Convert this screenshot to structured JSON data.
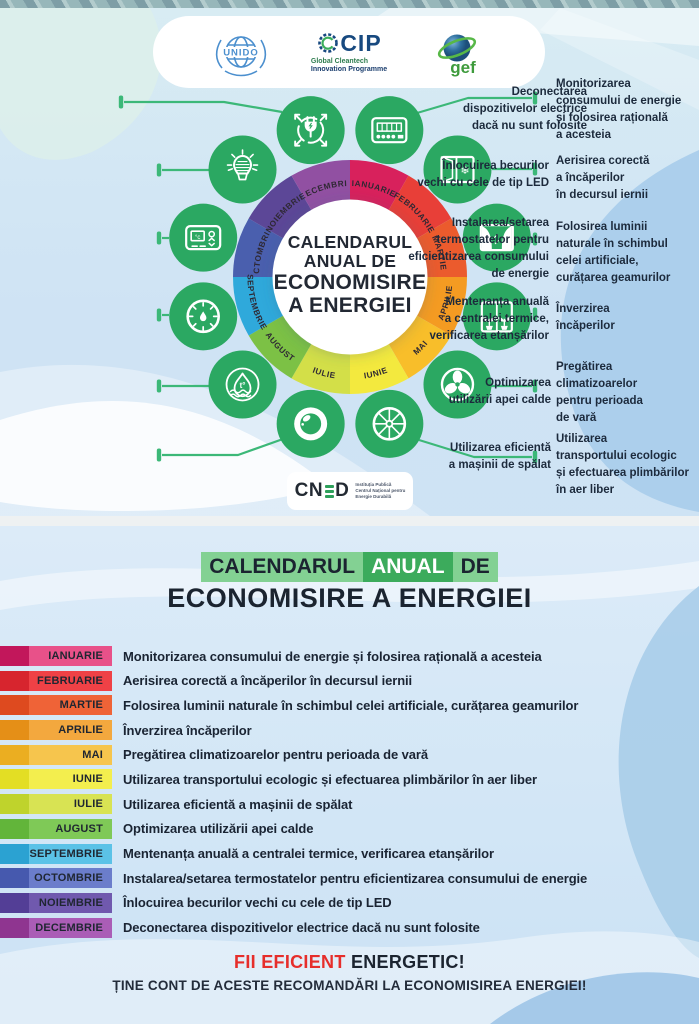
{
  "header": {
    "unido_label": "UNIDO",
    "gcip_label": "CIP",
    "gcip_sub1": "Global Cleantech",
    "gcip_sub2": "Innovation Programme",
    "gef_label": "gef"
  },
  "wheel_center": {
    "line1": "CALENDARUL",
    "line2": "ANUAL DE",
    "line3": "ECONOMISIRE",
    "line4": "A ENERGIEI"
  },
  "months": [
    {
      "name": "IANUARIE",
      "wedge_color": "#D8215C",
      "badge_dark": "#C2175B",
      "badge_light": "#E85189",
      "icon": "meter",
      "diagram_label": "Monitorizarea\nconsumului de energie\nși folosirea rațională\na acesteia",
      "description": "Monitorizarea consumului de energie și folosirea rațională a acesteia"
    },
    {
      "name": "FEBRUARIE",
      "wedge_color": "#E83F38",
      "badge_dark": "#D7252E",
      "badge_light": "#EF4146",
      "icon": "window-ventilation",
      "diagram_label": "Aerisirea corectă\na încăperilor\nîn decursul iernii",
      "description": "Aerisirea corectă a încăperilor în decursul iernii"
    },
    {
      "name": "MARTIE",
      "wedge_color": "#EB5B2D",
      "badge_dark": "#DE4A1F",
      "badge_light": "#EF6337",
      "icon": "curtains",
      "diagram_label": "Folosirea luminii\nnaturale în schimbul\ncelei artificiale,\ncurățarea geamurilor",
      "description": "Folosirea luminii naturale în schimbul celei artificiale, curățarea geamurilor"
    },
    {
      "name": "APRILIE",
      "wedge_color": "#F49B22",
      "badge_dark": "#E58F17",
      "badge_light": "#F3A83E",
      "icon": "plants-window",
      "diagram_label": "Înverzirea\nîncăperilor",
      "description": "Înverzirea încăperilor"
    },
    {
      "name": "MAI",
      "wedge_color": "#F8BE2A",
      "badge_dark": "#EBAE21",
      "badge_light": "#F6C54D",
      "icon": "fan",
      "diagram_label": "Pregătirea\nclimatizoarelor\npentru perioada\nde vară",
      "description": "Pregătirea climatizoarelor pentru perioada de vară"
    },
    {
      "name": "IUNIE",
      "wedge_color": "#F3E93E",
      "badge_dark": "#E3DE24",
      "badge_light": "#F3EE4E",
      "icon": "wheel",
      "diagram_label": "Utilizarea\ntransportului ecologic\nși efectuarea plimbărilor\nîn aer liber",
      "description": "Utilizarea transportului ecologic și efectuarea plimbărilor în aer liber"
    },
    {
      "name": "IULIE",
      "wedge_color": "#D3DF48",
      "badge_dark": "#BFD32C",
      "badge_light": "#D8E353",
      "icon": "washing-drum",
      "diagram_label": "Utilizarea eficientă\na mașinii de spălat",
      "description": "Utilizarea eficientă a mașinii de spălat"
    },
    {
      "name": "AUGUST",
      "wedge_color": "#7CC145",
      "badge_dark": "#62B53A",
      "badge_light": "#7FC957",
      "icon": "water-drop",
      "diagram_label": "Optimizarea\nutilizării apei calde",
      "description": "Optimizarea utilizării apei calde"
    },
    {
      "name": "SEPTEMBRIE",
      "wedge_color": "#2FA9DB",
      "badge_dark": "#2BA2D2",
      "badge_light": "#5BC2E7",
      "icon": "gauge",
      "diagram_label": "Mentenanța anuală\na centralei termice,\nverificarea etanșărilor",
      "description": "Mentenanța anuală a centralei termice, verificarea etanșărilor"
    },
    {
      "name": "OCTOMBRIE",
      "wedge_color": "#4A5FAE",
      "badge_dark": "#4659AE",
      "badge_light": "#6B7DCB",
      "icon": "thermostat",
      "diagram_label": "Instalarea/setarea\ntermostatelor pentru\neficientizarea consumului\nde energie",
      "description": "Instalarea/setarea termostatelor pentru eficientizarea consumului de energie"
    },
    {
      "name": "NOIEMBRIE",
      "wedge_color": "#5C4797",
      "badge_dark": "#533E96",
      "badge_light": "#7059AE",
      "icon": "bulb",
      "diagram_label": "Înlocuirea becurilor\nvechi cu cele de tip LED",
      "description": "Înlocuirea becurilor vechi cu cele de tip LED"
    },
    {
      "name": "DECEMBRIE",
      "wedge_color": "#9150A2",
      "badge_dark": "#8F3590",
      "badge_light": "#AA5DB6",
      "icon": "plug",
      "diagram_label": "Deconectarea\ndispozitivelor electrice\ndacă nu sunt folosite",
      "description": "Deconectarea dispozitivelor electrice dacă nu sunt folosite"
    }
  ],
  "cned": {
    "part1": "CN",
    "part2": "D",
    "sub1": "Instituția Publică",
    "sub2": "Centrul Național pentru",
    "sub3": "Energie Durabilă"
  },
  "bottom": {
    "title_seg1": "CALENDARUL",
    "title_seg2": "ANUAL",
    "title_seg3": "DE",
    "title_line2": "ECONOMISIRE A ENERGIEI",
    "footer_red": "FII EFICIENT",
    "footer_dark": "ENERGETIC!",
    "footer_sub": "ȚINE CONT DE ACESTE RECOMANDĂRI LA ECONOMISIREA ENERGIEI!"
  },
  "colors": {
    "icon_circle_green": "#2BA862",
    "connector_green": "#3CB878",
    "highlight_light_green": "#83D193",
    "highlight_dark_green": "#3CAB5C",
    "footer_red": "#E62E2B"
  }
}
